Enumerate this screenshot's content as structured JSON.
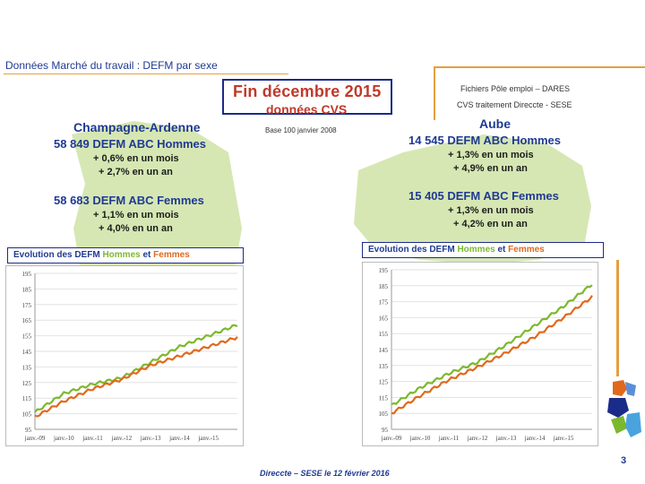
{
  "page_title": "Données Marché du travail : DEFM par sexe",
  "headline": {
    "line1": "Fin  décembre  2015",
    "line2": "données CVS"
  },
  "source_line1": "Fichiers Pôle emploi – DARES",
  "source_line2": "CVS traitement Direccte - SESE",
  "base_note": "Base 100 janvier 2008",
  "regions": {
    "champagne": {
      "name": "Champagne-Ardenne",
      "men_count": "58 849  DEFM ABC Hommes",
      "men_month": "+ 0,6% en un mois",
      "men_year": "+ 2,7% en un an",
      "women_count": "58 683  DEFM ABC Femmes",
      "women_month": "+ 1,1% en un mois",
      "women_year": "+ 4,0% en un an"
    },
    "aube": {
      "name": "Aube",
      "men_count": "14 545  DEFM ABC Hommes",
      "men_month": "+ 1,3% en un mois",
      "men_year": "+ 4,9% en un an",
      "women_count": "15 405  DEFM ABC Femmes",
      "women_month": "+ 1,3% en un mois",
      "women_year": "+ 4,2% en un an"
    }
  },
  "chart_title_parts": {
    "prefix": "Evolution des DEFM ",
    "men": "Hommes",
    "mid": " et ",
    "women": "Femmes"
  },
  "footer": "Direccte – SESE le 12 février 2016",
  "page_number": "3",
  "colors": {
    "men": "#7cb82f",
    "women": "#e0691c",
    "accent": "#1f3a93",
    "frame": "#e3a040",
    "map": "#cfe3a6"
  },
  "chart_data": [
    {
      "type": "line",
      "x": [
        "janv.-09",
        "janv.-10",
        "janv.-11",
        "janv.-12",
        "janv.-13",
        "janv.-14",
        "janv.-15",
        "déc.-15"
      ],
      "ylim": [
        95,
        195
      ],
      "yticks": [
        "195",
        "185",
        "175",
        "165",
        "155",
        "145",
        "135",
        "125",
        "115",
        "105",
        "95"
      ],
      "grid": true,
      "series": [
        {
          "name": "Hommes",
          "values": [
            106,
            118,
            124,
            128,
            138,
            148,
            155,
            162
          ]
        },
        {
          "name": "Femmes",
          "values": [
            103,
            113,
            121,
            127,
            136,
            142,
            148,
            154
          ]
        }
      ]
    },
    {
      "type": "line",
      "x": [
        "janv.-09",
        "janv.-10",
        "janv.-11",
        "janv.-12",
        "janv.-13",
        "janv.-14",
        "janv.-15",
        "déc.-15"
      ],
      "ylim": [
        95,
        195
      ],
      "yticks": [
        "195",
        "185",
        "175",
        "165",
        "155",
        "145",
        "135",
        "125",
        "115",
        "105",
        "95"
      ],
      "grid": true,
      "series": [
        {
          "name": "Hommes",
          "values": [
            110,
            121,
            130,
            137,
            148,
            160,
            172,
            186
          ]
        },
        {
          "name": "Femmes",
          "values": [
            105,
            116,
            126,
            134,
            143,
            153,
            165,
            178
          ]
        }
      ]
    }
  ]
}
